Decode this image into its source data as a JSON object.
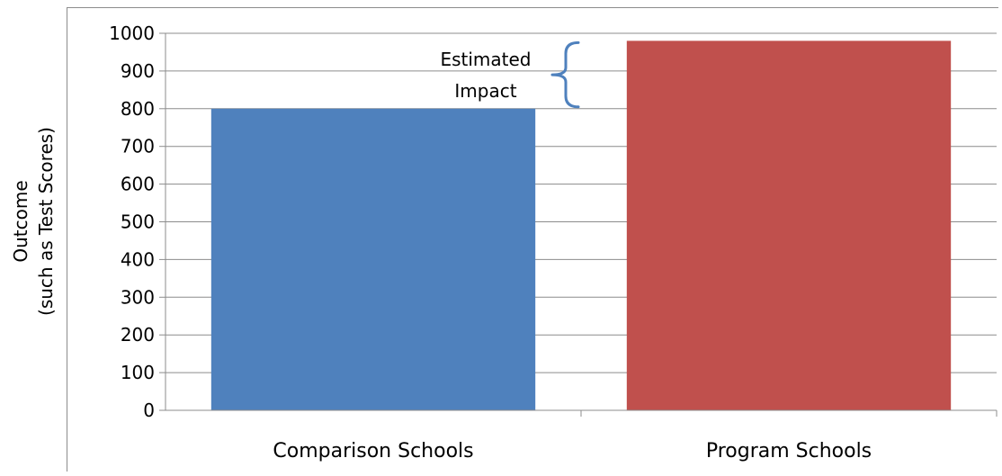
{
  "chart_data": {
    "type": "bar",
    "categories": [
      "Comparison Schools",
      "Program Schools"
    ],
    "values": [
      800,
      980
    ],
    "bar_colors": [
      "#4f81bd",
      "#c0504d"
    ],
    "title": "",
    "xlabel": "",
    "ylabel": [
      "Outcome",
      "(such as Test Scores)"
    ],
    "ylim": [
      0,
      1000
    ],
    "yticks": [
      "0",
      "100",
      "200",
      "300",
      "400",
      "500",
      "600",
      "700",
      "800",
      "900",
      "1000"
    ],
    "grid": "horizontal",
    "annotation": {
      "lines": [
        "Estimated",
        "Impact"
      ],
      "brace_from": 800,
      "brace_to": 980,
      "brace_color": "#4f81bd"
    }
  }
}
